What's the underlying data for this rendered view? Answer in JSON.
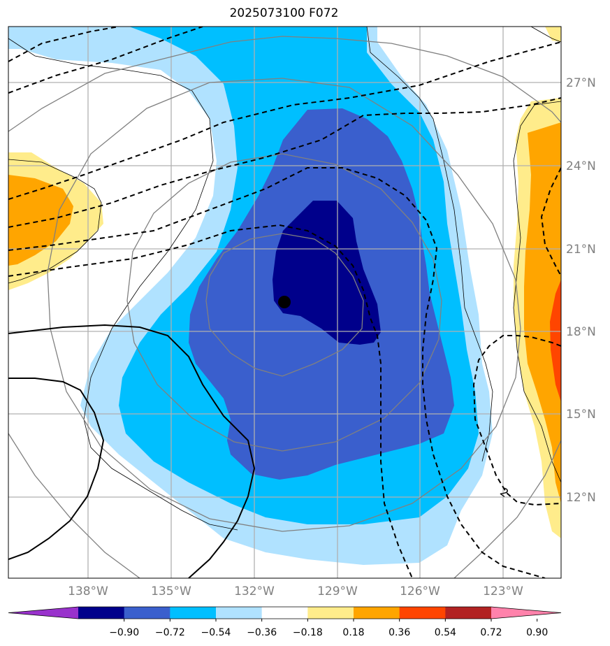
{
  "title": "2025073100 F072",
  "lat_labels": [
    "27°N",
    "24°N",
    "21°N",
    "18°N",
    "15°N",
    "12°N"
  ],
  "lon_labels": [
    "138°W",
    "135°W",
    "132°W",
    "129°W",
    "126°W",
    "123°W"
  ],
  "contour_label": "2",
  "colorbar": {
    "ticks": [
      "−0.90",
      "−0.72",
      "−0.54",
      "−0.36",
      "−0.18",
      "0.18",
      "0.36",
      "0.54",
      "0.72",
      "0.90"
    ],
    "colors": [
      "#9932cc",
      "#00008b",
      "#3a5fcd",
      "#00bfff",
      "#b0e2ff",
      "#ffffff",
      "#ffec8b",
      "#ffa500",
      "#ff4500",
      "#b22222",
      "#ff82ab"
    ]
  },
  "fill_colors": {
    "light_blue": "#b0e2ff",
    "deep_sky": "#00bfff",
    "royal_blue": "#3a5fcd",
    "navy": "#00008b",
    "light_yellow": "#ffec8b",
    "orange": "#ffa500",
    "orange_red": "#ff4500"
  }
}
